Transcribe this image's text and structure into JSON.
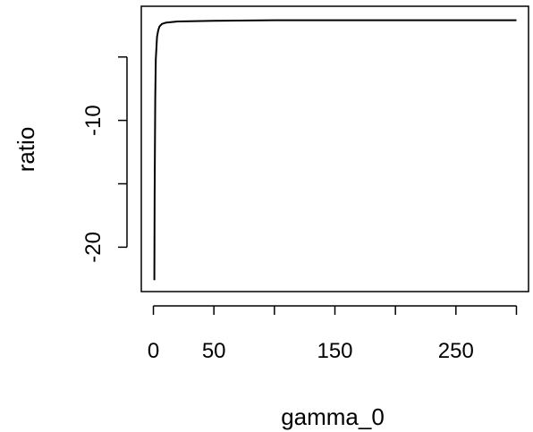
{
  "chart_data": {
    "type": "line",
    "title": "",
    "xlabel": "gamma_0",
    "ylabel": "ratio",
    "xlim": [
      -10,
      310
    ],
    "ylim": [
      -23.5,
      -1.0
    ],
    "grid": false,
    "legend": "none",
    "x_ticks": [
      0,
      50,
      100,
      150,
      200,
      250,
      300
    ],
    "x_tick_labels": [
      "0",
      "50",
      "",
      "150",
      "",
      "250",
      ""
    ],
    "y_ticks": [
      -20,
      -15,
      -10,
      -5
    ],
    "y_tick_labels": [
      "-20",
      "",
      "-10",
      ""
    ],
    "series": [
      {
        "color": "#000000",
        "x": [
          0.8,
          1,
          1.5,
          2,
          3,
          4,
          5,
          7,
          10,
          20,
          50,
          100,
          150,
          200,
          250,
          300
        ],
        "y": [
          -22.6,
          -16.0,
          -8.2,
          -5.2,
          -3.4,
          -2.9,
          -2.6,
          -2.4,
          -2.3,
          -2.2,
          -2.15,
          -2.1,
          -2.1,
          -2.1,
          -2.1,
          -2.1
        ]
      }
    ]
  }
}
